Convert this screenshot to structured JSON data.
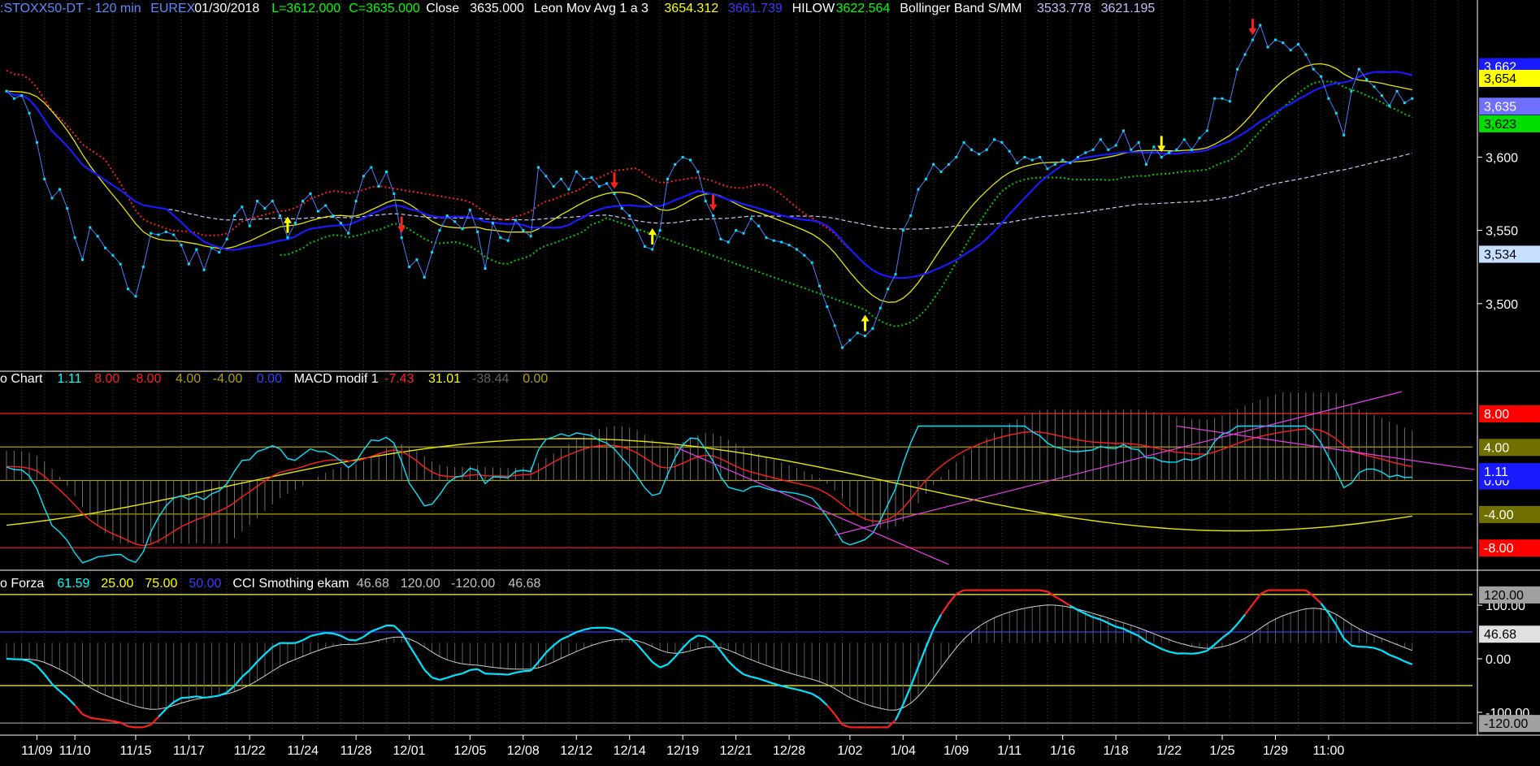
{
  "header": {
    "items": [
      {
        "text": ":STOXX50-DT - 120 min",
        "color": "#5b8cff"
      },
      {
        "text": "EUREX",
        "color": "#5b8cff"
      },
      {
        "text": "01/30/2018",
        "color": "#ffffff"
      },
      {
        "text": "L=3612.000",
        "color": "#00ff00"
      },
      {
        "text": "C=3635.000",
        "color": "#00ff00"
      },
      {
        "text": "Close",
        "color": "#ffffff"
      },
      {
        "text": "3635.000",
        "color": "#ffffff"
      },
      {
        "text": "Leon Mov Avg 1 a 3",
        "color": "#ffffff"
      },
      {
        "text": "3654.312",
        "color": "#ffff00"
      },
      {
        "text": "3661.739",
        "color": "#3b3bff"
      },
      {
        "text": "HILOW",
        "color": "#ffffff"
      },
      {
        "text": "3622.564",
        "color": "#00ff00"
      },
      {
        "text": "Bollinger Band S/MM",
        "color": "#ffffff"
      },
      {
        "text": "3533.778",
        "color": "#c0c0ff"
      },
      {
        "text": "3621.195",
        "color": "#c0c0ff"
      }
    ]
  },
  "panel2_header": {
    "items": [
      {
        "text": "o Chart",
        "color": "#ffffff"
      },
      {
        "text": "1.11",
        "color": "#00ffff"
      },
      {
        "text": "8.00",
        "color": "#ff2020"
      },
      {
        "text": "-8.00",
        "color": "#ff2020"
      },
      {
        "text": "4.00",
        "color": "#b0a000"
      },
      {
        "text": "-4.00",
        "color": "#b0a000"
      },
      {
        "text": "0.00",
        "color": "#3b3bff"
      },
      {
        "text": "MACD modif 1",
        "color": "#ffffff"
      },
      {
        "text": "-7.43",
        "color": "#ff2020"
      },
      {
        "text": "31.01",
        "color": "#ffff00"
      },
      {
        "text": "-38.44",
        "color": "#606060"
      },
      {
        "text": "0.00",
        "color": "#b0a000"
      }
    ]
  },
  "panel3_header": {
    "items": [
      {
        "text": "o Forza",
        "color": "#ffffff"
      },
      {
        "text": "61.59",
        "color": "#00ffff"
      },
      {
        "text": "25.00",
        "color": "#ffff00"
      },
      {
        "text": "75.00",
        "color": "#ffff00"
      },
      {
        "text": "50.00",
        "color": "#3b3bff"
      },
      {
        "text": "CCI Smothing ekam",
        "color": "#ffffff"
      },
      {
        "text": "46.68",
        "color": "#c0c0c0"
      },
      {
        "text": "120.00",
        "color": "#c0c0c0"
      },
      {
        "text": "-120.00",
        "color": "#c0c0c0"
      },
      {
        "text": "46.68",
        "color": "#c0c0c0"
      }
    ]
  },
  "colors": {
    "background": "#000000",
    "price": "#00e5ff",
    "blue_ma": "#1a1aff",
    "yellow_ma": "#e6e600",
    "red_ma": "#ff2020",
    "green_ma": "#00cc00",
    "bollinger": "#c8c8ff",
    "magenta": "#e040e0",
    "grid": "#3a3a3a"
  },
  "chart_data": [
    {
      "type": "line",
      "name": "price",
      "ylim": [
        3455,
        3695
      ],
      "yticks": [
        3500,
        3550,
        3600
      ],
      "ytick_labels": [
        "3,500",
        "3,550",
        "3,600"
      ],
      "axis_badges": [
        {
          "label": "3,662",
          "value": 3662,
          "bg": "#1a1aff",
          "fg": "#ffffff"
        },
        {
          "label": "3,654",
          "value": 3654,
          "bg": "#ffff00",
          "fg": "#000000"
        },
        {
          "label": "3,635",
          "value": 3635,
          "bg": "#7070ff",
          "fg": "#ffffff"
        },
        {
          "label": "3,623",
          "value": 3623,
          "bg": "#00dd00",
          "fg": "#000000"
        },
        {
          "label": "3,534",
          "value": 3534,
          "bg": "#c8e0ff",
          "fg": "#000000"
        }
      ],
      "close": [
        3645,
        3640,
        3642,
        3630,
        3610,
        3585,
        3572,
        3578,
        3565,
        3545,
        3530,
        3552,
        3546,
        3538,
        3533,
        3527,
        3510,
        3505,
        3525,
        3548,
        3547,
        3549,
        3547,
        3540,
        3527,
        3537,
        3523,
        3538,
        3535,
        3544,
        3560,
        3566,
        3553,
        3570,
        3565,
        3570,
        3560,
        3545,
        3555,
        3570,
        3575,
        3563,
        3567,
        3560,
        3555,
        3548,
        3570,
        3587,
        3593,
        3580,
        3590,
        3575,
        3545,
        3525,
        3530,
        3518,
        3535,
        3550,
        3560,
        3556,
        3551,
        3564,
        3549,
        3524,
        3555,
        3545,
        3543,
        3557,
        3550,
        3546,
        3593,
        3587,
        3580,
        3585,
        3578,
        3590,
        3585,
        3586,
        3580,
        3582,
        3575,
        3565,
        3560,
        3550,
        3539,
        3537,
        3550,
        3585,
        3595,
        3600,
        3598,
        3590,
        3570,
        3560,
        3544,
        3542,
        3550,
        3548,
        3558,
        3553,
        3545,
        3543,
        3542,
        3540,
        3537,
        3533,
        3528,
        3512,
        3498,
        3485,
        3470,
        3475,
        3480,
        3478,
        3483,
        3497,
        3510,
        3520,
        3550,
        3560,
        3578,
        3585,
        3595,
        3590,
        3595,
        3600,
        3610,
        3605,
        3602,
        3605,
        3612,
        3610,
        3604,
        3596,
        3600,
        3598,
        3600,
        3592,
        3595,
        3598,
        3596,
        3600,
        3603,
        3605,
        3612,
        3605,
        3608,
        3618,
        3605,
        3610,
        3595,
        3607,
        3600,
        3603,
        3605,
        3612,
        3605,
        3613,
        3618,
        3640,
        3640,
        3638,
        3660,
        3670,
        3680,
        3690,
        3675,
        3680,
        3678,
        3673,
        3677,
        3670,
        3660,
        3655,
        3640,
        3630,
        3615,
        3645,
        3660,
        3653,
        3648,
        3642,
        3635,
        3645,
        3637,
        3640
      ],
      "x_labels": [
        {
          "label": "11/09",
          "i": 4
        },
        {
          "label": "11/10",
          "i": 9
        },
        {
          "label": "11/15",
          "i": 17
        },
        {
          "label": "11/17",
          "i": 24
        },
        {
          "label": "11/22",
          "i": 32
        },
        {
          "label": "11/24",
          "i": 39
        },
        {
          "label": "11/28",
          "i": 46
        },
        {
          "label": "12/01",
          "i": 53
        },
        {
          "label": "12/05",
          "i": 61
        },
        {
          "label": "12/08",
          "i": 68
        },
        {
          "label": "12/12",
          "i": 75
        },
        {
          "label": "12/14",
          "i": 82
        },
        {
          "label": "12/19",
          "i": 89
        },
        {
          "label": "12/21",
          "i": 96
        },
        {
          "label": "12/28",
          "i": 103
        },
        {
          "label": "1/02",
          "i": 111
        },
        {
          "label": "1/04",
          "i": 118
        },
        {
          "label": "1/09",
          "i": 125
        },
        {
          "label": "1/11",
          "i": 132
        },
        {
          "label": "1/16",
          "i": 139
        },
        {
          "label": "1/18",
          "i": 146
        },
        {
          "label": "1/22",
          "i": 153
        },
        {
          "label": "1/25",
          "i": 160
        },
        {
          "label": "1/29",
          "i": 167
        },
        {
          "label": "11:00",
          "i": 174
        }
      ],
      "signals": [
        {
          "i": 37,
          "dir": "up"
        },
        {
          "i": 52,
          "dir": "down"
        },
        {
          "i": 80,
          "dir": "down"
        },
        {
          "i": 85,
          "dir": "up"
        },
        {
          "i": 93,
          "dir": "down"
        },
        {
          "i": 113,
          "dir": "up"
        },
        {
          "i": 152,
          "dir": "down"
        },
        {
          "i": 164,
          "dir": "down"
        }
      ]
    },
    {
      "type": "line",
      "name": "macd",
      "ylim": [
        -10.5,
        11
      ],
      "levels": [
        {
          "value": 8,
          "color": "#ff2020"
        },
        {
          "value": 4,
          "color": "#b0a000"
        },
        {
          "value": 0,
          "color": "#b0a000"
        },
        {
          "value": -4,
          "color": "#b0a000"
        },
        {
          "value": -8,
          "color": "#ff2020"
        }
      ],
      "axis_badges": [
        {
          "label": "8.00",
          "value": 8,
          "bg": "#ff0000",
          "fg": "#ffffff"
        },
        {
          "label": "4.00",
          "value": 4,
          "bg": "#707000",
          "fg": "#ffffff"
        },
        {
          "label": "0.00",
          "value": 0,
          "bg": "#1a1aff",
          "fg": "#ffffff"
        },
        {
          "label": "1.11",
          "value": 1.11,
          "bg": "#1a1aff",
          "fg": "#ffffff"
        },
        {
          "label": "-4.00",
          "value": -4,
          "bg": "#707000",
          "fg": "#ffffff"
        },
        {
          "label": "-8.00",
          "value": -8,
          "bg": "#ff0000",
          "fg": "#ffffff"
        }
      ]
    },
    {
      "type": "line",
      "name": "cci",
      "ylim": [
        -135,
        135
      ],
      "levels": [
        {
          "value": 120,
          "color": "#ffff00"
        },
        {
          "value": 50,
          "color": "#3b3bff"
        },
        {
          "value": -50,
          "color": "#ffff00"
        },
        {
          "value": -120,
          "color": "#909090"
        }
      ],
      "yticks": [
        100,
        0,
        -100
      ],
      "ytick_labels": [
        "100.00",
        "0.00",
        "-100.00"
      ],
      "axis_badges": [
        {
          "label": "120.00",
          "value": 120,
          "bg": "#a0a0a0",
          "fg": "#000000"
        },
        {
          "label": "46.68",
          "value": 46.68,
          "bg": "#e0e0e0",
          "fg": "#000000"
        },
        {
          "label": "-120.00",
          "value": -120,
          "bg": "#a0a0a0",
          "fg": "#000000"
        }
      ]
    }
  ]
}
